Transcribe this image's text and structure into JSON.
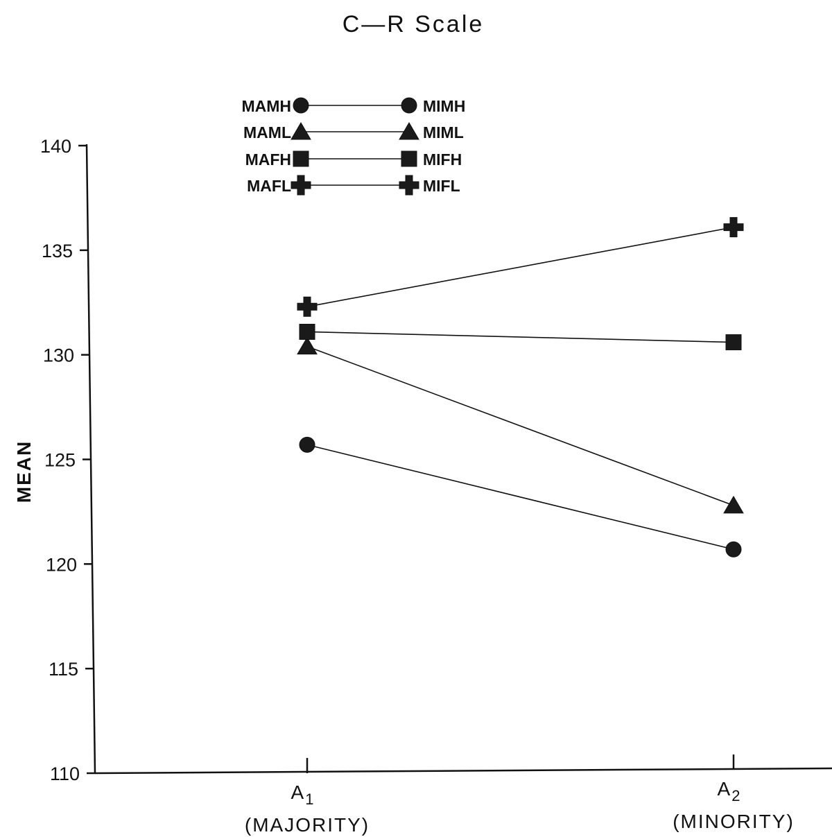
{
  "chart_data": {
    "type": "line",
    "title": "C—R Scale",
    "ylabel": "MEAN",
    "xlabel": "",
    "ylim": [
      110,
      140
    ],
    "yticks": [
      110,
      115,
      120,
      125,
      130,
      135,
      140
    ],
    "categories": [
      {
        "main": "A",
        "sub": "1",
        "desc": "(MAJORITY)"
      },
      {
        "main": "A",
        "sub": "2",
        "desc": "(MINORITY)"
      }
    ],
    "series": [
      {
        "name": "MAMH",
        "pair": "MIMH",
        "marker": "circle",
        "values": [
          125.7,
          120.7
        ]
      },
      {
        "name": "MAML",
        "pair": "MIML",
        "marker": "triangle",
        "values": [
          130.4,
          122.8
        ]
      },
      {
        "name": "MAFH",
        "pair": "MIFH",
        "marker": "square",
        "values": [
          131.1,
          130.6
        ]
      },
      {
        "name": "MAFL",
        "pair": "MIFL",
        "marker": "plus",
        "values": [
          132.3,
          136.1
        ]
      }
    ],
    "legend_position": "top-left",
    "grid": false
  }
}
